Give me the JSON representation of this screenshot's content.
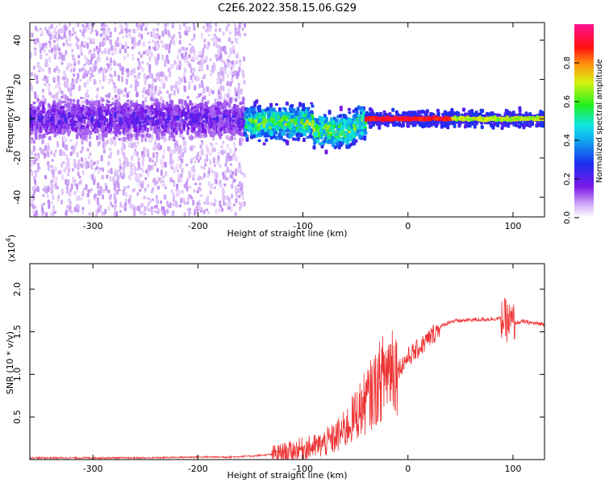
{
  "figure": {
    "title": "C2E6.2022.358.15.06.G29"
  },
  "colors": {
    "snr_line": "#ee3333",
    "axes": "#000000",
    "spectrum_low": "#e8d6fb",
    "spectrum_mid": "#6a10e8",
    "spectrum_high": "#ff1020"
  },
  "chart_data": [
    {
      "type": "heatmap",
      "title": "C2E6.2022.358.15.06.G29",
      "xlabel": "Height of straight line (km)",
      "ylabel": "Frequency (Hz)",
      "xlim": [
        -360,
        130
      ],
      "ylim": [
        -50,
        49
      ],
      "x_ticks": [
        -300,
        -200,
        -100,
        0,
        100
      ],
      "x_tick_labels": [
        "-300",
        "-200",
        "-100",
        "0",
        "100"
      ],
      "y_ticks": [
        -40,
        -20,
        0,
        20,
        40
      ],
      "y_tick_labels": [
        "-40",
        "-20",
        "0",
        "20",
        "40"
      ],
      "colorbar": {
        "label": "Normalized spectral amplitude",
        "range": [
          0.0,
          1.0
        ],
        "ticks": [
          0.0,
          0.2,
          0.4,
          0.6,
          0.8
        ],
        "tick_labels": [
          "0.0",
          "0.2",
          "0.4",
          "0.6",
          "0.8"
        ],
        "colormap": "rainbow (white-violet-blue-cyan-green-yellow-red-magenta)"
      },
      "features": [
        {
          "x_range": [
            -360,
            -155
          ],
          "description_values": {
            "center_hz": 0,
            "spread_hz": 49,
            "core_amplitude": 0.15
          }
        },
        {
          "x_range": [
            -155,
            -40
          ],
          "description_values": {
            "center_hz": -2,
            "spread_hz": 12,
            "core_amplitude": 0.45
          }
        },
        {
          "x_range": [
            -40,
            130
          ],
          "description_values": {
            "center_hz": 0,
            "spread_hz": 3,
            "core_amplitude": 0.85
          }
        }
      ]
    },
    {
      "type": "line",
      "xlabel": "Height of straight line (km)",
      "ylabel": "SNR (10 * v/v)",
      "y_multiplier": "(x10",
      "y_multiplier_exp": "4",
      "y_multiplier_close": ")",
      "xlim": [
        -360,
        130
      ],
      "ylim": [
        0,
        2.3
      ],
      "x_ticks": [
        -300,
        -200,
        -100,
        0,
        100
      ],
      "x_tick_labels": [
        "-300",
        "-200",
        "-100",
        "0",
        "100"
      ],
      "y_ticks": [
        0.5,
        1.0,
        1.5,
        2.0
      ],
      "y_tick_labels": [
        "0.5",
        "1.0",
        "1.5",
        "2.0"
      ],
      "series": [
        {
          "x": [
            -360,
            -300,
            -250,
            -200,
            -170,
            -150,
            -130,
            -115,
            -100,
            -85,
            -70,
            -60,
            -50,
            -40,
            -30,
            -20,
            -15,
            -10,
            -5,
            0,
            10,
            20,
            30,
            40,
            60,
            80,
            90,
            95,
            100,
            110,
            120,
            130
          ],
          "y": [
            0.02,
            0.02,
            0.02,
            0.03,
            0.03,
            0.04,
            0.06,
            0.09,
            0.13,
            0.16,
            0.25,
            0.35,
            0.52,
            0.68,
            0.85,
            1.05,
            1.15,
            1.05,
            1.12,
            1.2,
            1.3,
            1.42,
            1.55,
            1.62,
            1.64,
            1.65,
            1.66,
            1.62,
            1.6,
            1.62,
            1.6,
            1.59
          ]
        }
      ]
    }
  ]
}
